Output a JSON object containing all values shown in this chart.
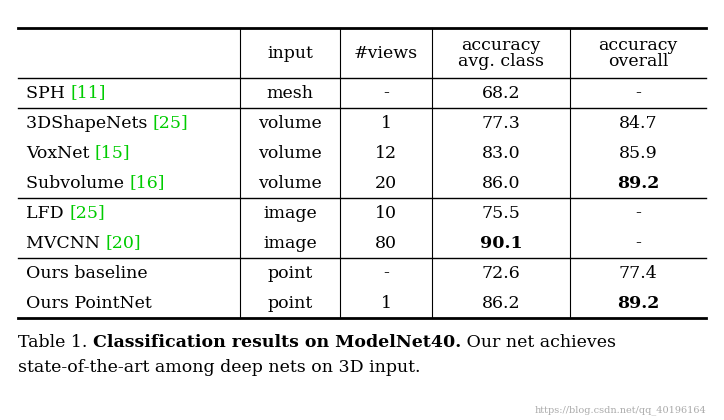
{
  "col_headers": [
    "",
    "input",
    "#views",
    "accuracy\navg. class",
    "accuracy\noverall"
  ],
  "rows": [
    {
      "method": "SPH ",
      "ref": "[11]",
      "ref_color": "#00cc00",
      "input": "mesh",
      "views": "-",
      "acc_avg": "68.2",
      "acc_avg_bold": false,
      "acc_overall": "-",
      "acc_overall_bold": false,
      "sep_before": false
    },
    {
      "method": "3DShapeNets ",
      "ref": "[25]",
      "ref_color": "#00cc00",
      "input": "volume",
      "views": "1",
      "acc_avg": "77.3",
      "acc_avg_bold": false,
      "acc_overall": "84.7",
      "acc_overall_bold": false,
      "sep_before": true
    },
    {
      "method": "VoxNet ",
      "ref": "[15]",
      "ref_color": "#00cc00",
      "input": "volume",
      "views": "12",
      "acc_avg": "83.0",
      "acc_avg_bold": false,
      "acc_overall": "85.9",
      "acc_overall_bold": false,
      "sep_before": false
    },
    {
      "method": "Subvolume ",
      "ref": "[16]",
      "ref_color": "#00cc00",
      "input": "volume",
      "views": "20",
      "acc_avg": "86.0",
      "acc_avg_bold": false,
      "acc_overall": "89.2",
      "acc_overall_bold": true,
      "sep_before": false
    },
    {
      "method": "LFD ",
      "ref": "[25]",
      "ref_color": "#00cc00",
      "input": "image",
      "views": "10",
      "acc_avg": "75.5",
      "acc_avg_bold": false,
      "acc_overall": "-",
      "acc_overall_bold": false,
      "sep_before": true
    },
    {
      "method": "MVCNN ",
      "ref": "[20]",
      "ref_color": "#00cc00",
      "input": "image",
      "views": "80",
      "acc_avg": "90.1",
      "acc_avg_bold": true,
      "acc_overall": "-",
      "acc_overall_bold": false,
      "sep_before": false
    },
    {
      "method": "Ours baseline",
      "ref": "",
      "ref_color": "#000000",
      "input": "point",
      "views": "-",
      "acc_avg": "72.6",
      "acc_avg_bold": false,
      "acc_overall": "77.4",
      "acc_overall_bold": false,
      "sep_before": true
    },
    {
      "method": "Ours PointNet",
      "ref": "",
      "ref_color": "#000000",
      "input": "point",
      "views": "1",
      "acc_avg": "86.2",
      "acc_avg_bold": false,
      "acc_overall": "89.2",
      "acc_overall_bold": true,
      "sep_before": false
    }
  ],
  "bg_color": "#ffffff",
  "watermark": "https://blog.csdn.net/qq_40196164",
  "font_size": 12.5,
  "caption_font_size": 12.5
}
